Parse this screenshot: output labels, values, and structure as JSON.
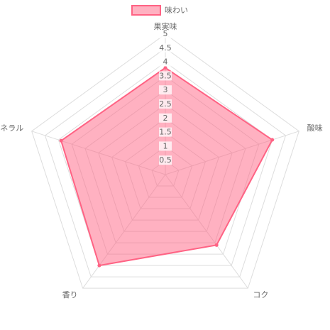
{
  "chart_data": {
    "type": "radar",
    "categories": [
      "果実味",
      "酸味",
      "コク",
      "香り",
      "ミネラル"
    ],
    "series": [
      {
        "name": "味わい",
        "color": "#ff6384",
        "values": [
          3.8,
          4,
          3.1,
          4,
          3.9
        ]
      }
    ],
    "rlim": [
      0,
      5
    ],
    "rticks": [
      0.5,
      1,
      1.5,
      2,
      2.5,
      3,
      3.5,
      4,
      4.5,
      5
    ],
    "grid": true,
    "legend": "top"
  }
}
